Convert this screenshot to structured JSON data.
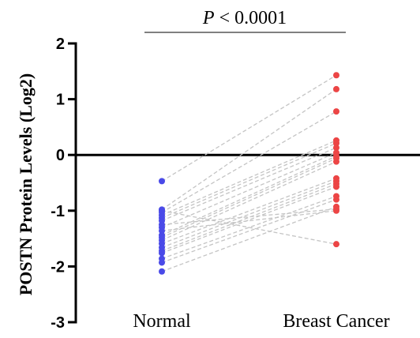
{
  "chart_data": {
    "type": "scatter",
    "subtype": "paired-dot-plot",
    "categories": [
      "Normal",
      "Breast Cancer"
    ],
    "ylabel": "POSTN Protein Levels (Log2)",
    "ylim": [
      -3,
      2
    ],
    "yticks": [
      "2",
      "1",
      "0",
      "-1",
      "-2",
      "-3"
    ],
    "reference_line_y": 0,
    "annotation": {
      "italic": "P",
      "rest": " < 0.0001"
    },
    "colors": {
      "Normal": "#4a4ae8",
      "Breast Cancer": "#ec4545"
    },
    "pairs": [
      [
        -0.47,
        1.43
      ],
      [
        -0.98,
        1.18
      ],
      [
        -1.03,
        0.78
      ],
      [
        -1.08,
        0.26
      ],
      [
        -1.13,
        0.21
      ],
      [
        -1.18,
        0.13
      ],
      [
        -1.3,
        0.04
      ],
      [
        -1.44,
        -0.02
      ],
      [
        -1.48,
        -0.06
      ],
      [
        -1.53,
        -0.12
      ],
      [
        -1.59,
        -0.42
      ],
      [
        -1.66,
        -0.47
      ],
      [
        -1.72,
        -0.52
      ],
      [
        -1.76,
        -0.57
      ],
      [
        -1.86,
        -0.74
      ],
      [
        -1.93,
        -0.8
      ],
      [
        -2.09,
        -0.93
      ],
      [
        -1.25,
        -0.97
      ],
      [
        -1.36,
        -1.0
      ],
      [
        -1.0,
        -1.6
      ]
    ]
  }
}
